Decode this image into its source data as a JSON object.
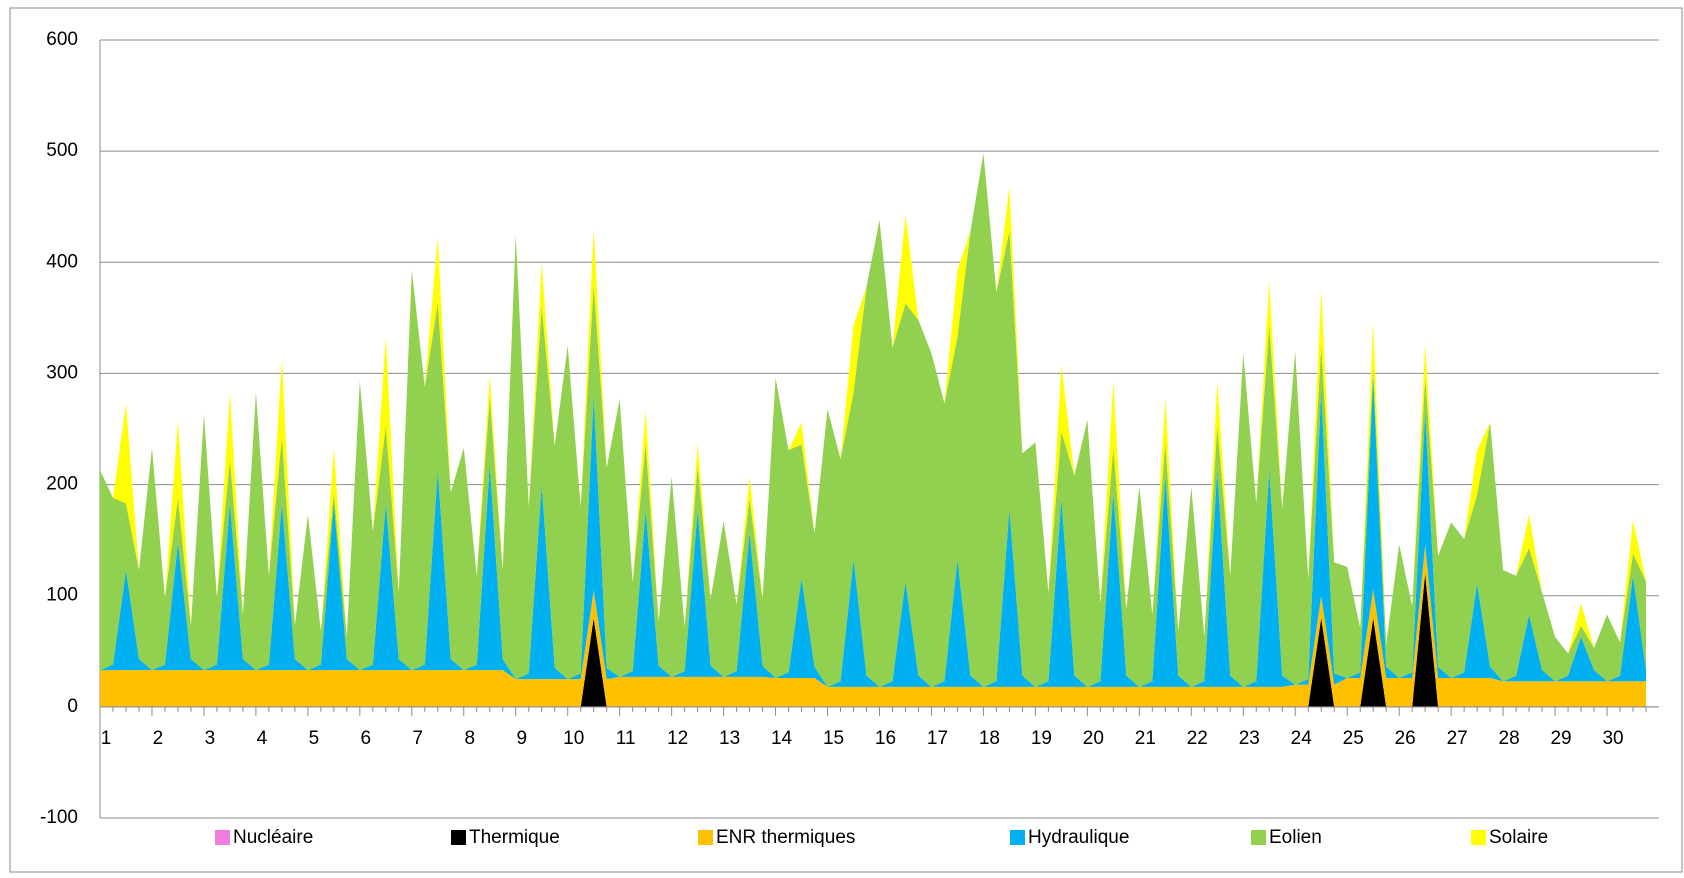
{
  "chart_data": {
    "type": "stacked_area",
    "categories": [
      "1",
      null,
      null,
      null,
      "2",
      null,
      null,
      null,
      "3",
      null,
      null,
      null,
      "4",
      null,
      null,
      null,
      "5",
      null,
      null,
      null,
      "6",
      null,
      null,
      null,
      "7",
      null,
      null,
      null,
      "8",
      null,
      null,
      null,
      "9",
      null,
      null,
      null,
      "10",
      null,
      null,
      null,
      "11",
      null,
      null,
      null,
      "12",
      null,
      null,
      null,
      "13",
      null,
      null,
      null,
      "14",
      null,
      null,
      null,
      "15",
      null,
      null,
      null,
      "16",
      null,
      null,
      null,
      "17",
      null,
      null,
      null,
      "18",
      null,
      null,
      null,
      "19",
      null,
      null,
      null,
      "20",
      null,
      null,
      null,
      "21",
      null,
      null,
      null,
      "22",
      null,
      null,
      null,
      "23",
      null,
      null,
      null,
      "24",
      null,
      null,
      null,
      "25",
      null,
      null,
      null,
      "26",
      null,
      null,
      null,
      "27",
      null,
      null,
      null,
      "28",
      null,
      null,
      null,
      "29",
      null,
      null,
      null,
      "30",
      null,
      null,
      null
    ],
    "ylim": [
      -100,
      600
    ],
    "yticks": [
      -100,
      0,
      100,
      200,
      300,
      400,
      500,
      600
    ],
    "grid": true,
    "legend": "bottom",
    "series": [
      {
        "name": "Nucléaire",
        "color": "#f07ce0",
        "values": [
          0,
          0,
          0,
          0,
          0,
          0,
          0,
          0,
          0,
          0,
          0,
          0,
          0,
          0,
          0,
          0,
          0,
          0,
          0,
          0,
          0,
          0,
          0,
          0,
          0,
          0,
          0,
          0,
          0,
          0,
          0,
          0,
          0,
          0,
          0,
          0,
          0,
          0,
          0,
          0,
          0,
          0,
          0,
          0,
          0,
          0,
          0,
          0,
          0,
          0,
          0,
          0,
          0,
          0,
          0,
          0,
          0,
          0,
          0,
          0,
          0,
          0,
          0,
          0,
          0,
          0,
          0,
          0,
          0,
          0,
          0,
          0,
          0,
          0,
          0,
          0,
          0,
          0,
          0,
          0,
          0,
          0,
          0,
          0,
          0,
          0,
          0,
          0,
          0,
          0,
          0,
          0,
          0,
          0,
          0,
          0,
          0,
          0,
          0,
          0,
          0,
          0,
          0,
          0,
          0,
          0,
          0,
          0,
          0,
          0,
          0,
          0,
          0,
          0,
          0,
          0,
          0,
          0,
          0,
          0
        ]
      },
      {
        "name": "Thermique",
        "color": "#000000",
        "values": [
          0,
          0,
          0,
          0,
          0,
          0,
          0,
          0,
          0,
          0,
          0,
          0,
          0,
          0,
          0,
          0,
          0,
          0,
          0,
          0,
          0,
          0,
          0,
          0,
          0,
          0,
          0,
          0,
          0,
          0,
          0,
          0,
          0,
          0,
          0,
          0,
          0,
          0,
          80,
          0,
          0,
          0,
          0,
          0,
          0,
          0,
          0,
          0,
          0,
          0,
          0,
          0,
          0,
          0,
          0,
          0,
          0,
          0,
          0,
          0,
          0,
          0,
          0,
          0,
          0,
          0,
          0,
          0,
          0,
          0,
          0,
          0,
          0,
          0,
          0,
          0,
          0,
          0,
          0,
          0,
          0,
          0,
          0,
          0,
          0,
          0,
          0,
          0,
          0,
          0,
          0,
          0,
          0,
          0,
          80,
          0,
          0,
          0,
          80,
          0,
          0,
          0,
          120,
          0,
          0,
          0,
          0,
          0,
          0,
          0,
          0,
          0,
          0,
          0,
          0,
          0,
          0,
          0,
          0,
          0
        ]
      },
      {
        "name": "ENR thermiques",
        "color": "#ffc000",
        "values": [
          33,
          33,
          33,
          33,
          33,
          33,
          33,
          33,
          33,
          33,
          33,
          33,
          33,
          33,
          33,
          33,
          33,
          33,
          33,
          33,
          33,
          33,
          33,
          33,
          33,
          33,
          33,
          33,
          33,
          33,
          33,
          33,
          25,
          25,
          25,
          25,
          25,
          25,
          25,
          25,
          27,
          27,
          27,
          27,
          27,
          27,
          27,
          27,
          27,
          27,
          27,
          27,
          26,
          26,
          26,
          26,
          18,
          18,
          18,
          18,
          18,
          18,
          18,
          18,
          18,
          18,
          18,
          18,
          18,
          18,
          18,
          18,
          18,
          18,
          18,
          18,
          18,
          18,
          18,
          18,
          18,
          18,
          18,
          18,
          18,
          18,
          18,
          18,
          18,
          18,
          18,
          18,
          20,
          20,
          20,
          20,
          26,
          26,
          26,
          26,
          26,
          26,
          26,
          26,
          26,
          26,
          26,
          26,
          23,
          23,
          23,
          23,
          23,
          23,
          23,
          23,
          23,
          23,
          23,
          23
        ]
      },
      {
        "name": "Hydraulique",
        "color": "#00b0f0",
        "values": [
          0,
          5,
          90,
          10,
          0,
          5,
          115,
          10,
          0,
          5,
          150,
          10,
          0,
          5,
          150,
          10,
          0,
          5,
          150,
          10,
          0,
          5,
          150,
          10,
          0,
          5,
          180,
          10,
          0,
          5,
          185,
          10,
          0,
          5,
          175,
          10,
          0,
          5,
          175,
          10,
          0,
          5,
          150,
          10,
          0,
          5,
          150,
          10,
          0,
          5,
          130,
          10,
          0,
          5,
          90,
          10,
          0,
          5,
          115,
          10,
          0,
          5,
          95,
          10,
          0,
          5,
          115,
          10,
          0,
          5,
          160,
          10,
          0,
          5,
          170,
          10,
          0,
          5,
          175,
          10,
          0,
          5,
          190,
          10,
          0,
          5,
          195,
          10,
          0,
          5,
          195,
          10,
          0,
          5,
          185,
          10,
          0,
          5,
          190,
          10,
          0,
          5,
          120,
          10,
          0,
          5,
          85,
          10,
          0,
          5,
          60,
          10,
          0,
          5,
          40,
          10,
          0,
          5,
          95,
          10
        ]
      },
      {
        "name": "Eolien",
        "color": "#92d050",
        "values": [
          180,
          150,
          60,
          80,
          200,
          60,
          40,
          30,
          230,
          60,
          40,
          40,
          250,
          80,
          60,
          30,
          140,
          30,
          10,
          20,
          260,
          120,
          70,
          60,
          360,
          250,
          150,
          150,
          200,
          80,
          60,
          80,
          400,
          150,
          160,
          200,
          300,
          150,
          100,
          180,
          250,
          80,
          60,
          40,
          180,
          40,
          40,
          60,
          140,
          60,
          30,
          60,
          270,
          200,
          120,
          120,
          250,
          200,
          150,
          350,
          420,
          300,
          250,
          320,
          300,
          250,
          200,
          400,
          480,
          350,
          250,
          200,
          220,
          80,
          60,
          180,
          240,
          70,
          40,
          60,
          180,
          60,
          30,
          40,
          180,
          40,
          40,
          90,
          300,
          160,
          130,
          150,
          300,
          90,
          40,
          100,
          100,
          40,
          10,
          20,
          120,
          60,
          30,
          100,
          140,
          120,
          80,
          220,
          100,
          90,
          60,
          70,
          40,
          20,
          10,
          20,
          60,
          30,
          20,
          80
        ]
      },
      {
        "name": "Solaire",
        "color": "#ffff00",
        "values": [
          0,
          0,
          90,
          0,
          0,
          0,
          70,
          0,
          0,
          0,
          60,
          0,
          0,
          0,
          70,
          0,
          0,
          0,
          40,
          0,
          0,
          0,
          80,
          0,
          0,
          0,
          60,
          0,
          0,
          0,
          20,
          0,
          0,
          0,
          40,
          0,
          0,
          0,
          50,
          0,
          0,
          0,
          30,
          0,
          0,
          0,
          20,
          0,
          0,
          0,
          20,
          0,
          0,
          0,
          20,
          0,
          0,
          0,
          60,
          0,
          0,
          0,
          80,
          0,
          0,
          0,
          60,
          0,
          0,
          0,
          40,
          0,
          0,
          0,
          60,
          0,
          0,
          0,
          60,
          0,
          0,
          0,
          40,
          0,
          0,
          0,
          40,
          0,
          0,
          0,
          40,
          0,
          0,
          0,
          50,
          0,
          0,
          0,
          40,
          0,
          0,
          0,
          30,
          0,
          0,
          0,
          40,
          0,
          0,
          0,
          30,
          0,
          0,
          0,
          20,
          0,
          0,
          0,
          30,
          0
        ]
      }
    ]
  }
}
